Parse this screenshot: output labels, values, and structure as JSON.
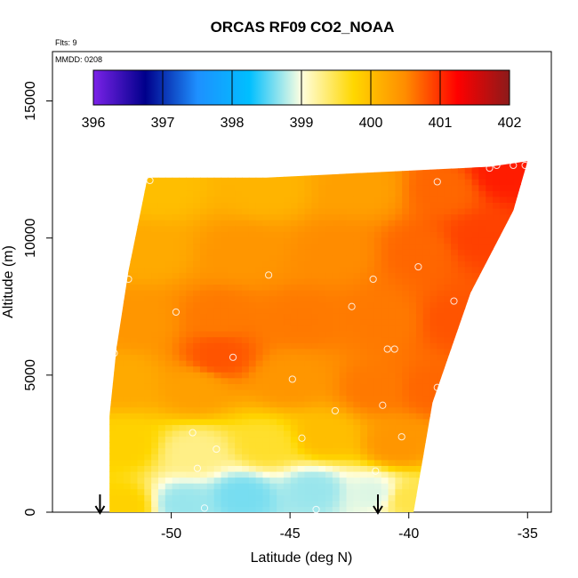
{
  "chart_data": {
    "type": "heatmap",
    "title": "ORCAS RF09 CO2_NOAA",
    "top_note": "Flts: 9",
    "inner_note": "MMDD: 0208",
    "xlabel": "Latitude (deg N)",
    "ylabel": "Altitude (m)",
    "xlim": [
      -55,
      -34
    ],
    "ylim": [
      0,
      16800
    ],
    "x_ticks": [
      -50,
      -45,
      -40,
      -35
    ],
    "x_tick_labels": [
      "-50",
      "-45",
      "-40",
      "-35"
    ],
    "y_ticks": [
      0,
      5000,
      10000,
      15000
    ],
    "y_tick_labels": [
      "0",
      "5000",
      "10000",
      "15000"
    ],
    "colorbar": {
      "min": 396,
      "max": 402,
      "ticks": [
        396,
        397,
        398,
        399,
        400,
        401,
        402
      ],
      "tick_labels": [
        "396",
        "397",
        "398",
        "399",
        "400",
        "401",
        "402"
      ],
      "colors": [
        "#7B22E8",
        "#00008B",
        "#1E90FF",
        "#00BFFF",
        "#FFFFE0",
        "#FFD700",
        "#FF8C00",
        "#FF0000",
        "#8B1A1A"
      ]
    },
    "curtain_outline": [
      {
        "lat": -52.6,
        "alt": 0
      },
      {
        "lat": -52.6,
        "alt": 3500
      },
      {
        "lat": -52.3,
        "alt": 6000
      },
      {
        "lat": -51.8,
        "alt": 8800
      },
      {
        "lat": -51.0,
        "alt": 12200
      },
      {
        "lat": -46.0,
        "alt": 12200
      },
      {
        "lat": -36.6,
        "alt": 12600
      },
      {
        "lat": -35.0,
        "alt": 12800
      },
      {
        "lat": -35.6,
        "alt": 11000
      },
      {
        "lat": -37.4,
        "alt": 8000
      },
      {
        "lat": -39.0,
        "alt": 4000
      },
      {
        "lat": -39.8,
        "alt": 0
      }
    ],
    "field_samples": [
      {
        "lat": -52.0,
        "alt": 200,
        "co2": 399.8
      },
      {
        "lat": -49.5,
        "alt": 300,
        "co2": 398.7
      },
      {
        "lat": -47.0,
        "alt": 600,
        "co2": 398.6
      },
      {
        "lat": -44.0,
        "alt": 800,
        "co2": 398.7
      },
      {
        "lat": -41.5,
        "alt": 700,
        "co2": 398.9
      },
      {
        "lat": -40.0,
        "alt": 500,
        "co2": 399.5
      },
      {
        "lat": -52.0,
        "alt": 2500,
        "co2": 399.8
      },
      {
        "lat": -49.0,
        "alt": 2200,
        "co2": 399.3
      },
      {
        "lat": -46.0,
        "alt": 2500,
        "co2": 399.6
      },
      {
        "lat": -43.5,
        "alt": 2800,
        "co2": 400.0
      },
      {
        "lat": -40.5,
        "alt": 2500,
        "co2": 400.4
      },
      {
        "lat": -52.0,
        "alt": 4800,
        "co2": 400.2
      },
      {
        "lat": -49.0,
        "alt": 4500,
        "co2": 400.3
      },
      {
        "lat": -45.0,
        "alt": 4800,
        "co2": 400.4
      },
      {
        "lat": -41.5,
        "alt": 4500,
        "co2": 400.6
      },
      {
        "lat": -39.0,
        "alt": 4500,
        "co2": 400.7
      },
      {
        "lat": -51.5,
        "alt": 7000,
        "co2": 400.4
      },
      {
        "lat": -48.0,
        "alt": 7200,
        "co2": 400.6
      },
      {
        "lat": -44.5,
        "alt": 7000,
        "co2": 400.6
      },
      {
        "lat": -41.0,
        "alt": 7000,
        "co2": 400.6
      },
      {
        "lat": -38.0,
        "alt": 7000,
        "co2": 400.8
      },
      {
        "lat": -51.0,
        "alt": 9500,
        "co2": 400.2
      },
      {
        "lat": -47.0,
        "alt": 9500,
        "co2": 400.4
      },
      {
        "lat": -43.0,
        "alt": 9500,
        "co2": 400.5
      },
      {
        "lat": -39.5,
        "alt": 9500,
        "co2": 400.7
      },
      {
        "lat": -37.0,
        "alt": 10000,
        "co2": 400.9
      },
      {
        "lat": -50.5,
        "alt": 11800,
        "co2": 400.0
      },
      {
        "lat": -46.0,
        "alt": 11800,
        "co2": 400.1
      },
      {
        "lat": -42.0,
        "alt": 11800,
        "co2": 400.3
      },
      {
        "lat": -38.5,
        "alt": 11800,
        "co2": 400.7
      },
      {
        "lat": -36.0,
        "alt": 12400,
        "co2": 401.1
      },
      {
        "lat": -48.0,
        "alt": 5700,
        "co2": 400.8
      }
    ],
    "sample_points": [
      {
        "lat": -50.9,
        "alt": 12100
      },
      {
        "lat": -38.8,
        "alt": 12050
      },
      {
        "lat": -36.6,
        "alt": 12550
      },
      {
        "lat": -36.3,
        "alt": 12650
      },
      {
        "lat": -35.6,
        "alt": 12650
      },
      {
        "lat": -35.1,
        "alt": 12650
      },
      {
        "lat": -39.6,
        "alt": 8950
      },
      {
        "lat": -45.9,
        "alt": 8650
      },
      {
        "lat": -41.5,
        "alt": 8500
      },
      {
        "lat": -51.8,
        "alt": 8500
      },
      {
        "lat": -38.1,
        "alt": 7700
      },
      {
        "lat": -42.4,
        "alt": 7500
      },
      {
        "lat": -49.8,
        "alt": 7300
      },
      {
        "lat": -40.9,
        "alt": 5950
      },
      {
        "lat": -40.6,
        "alt": 5950
      },
      {
        "lat": -52.4,
        "alt": 5800
      },
      {
        "lat": -47.4,
        "alt": 5650
      },
      {
        "lat": -44.9,
        "alt": 4850
      },
      {
        "lat": -38.8,
        "alt": 4550
      },
      {
        "lat": -41.1,
        "alt": 3900
      },
      {
        "lat": -43.1,
        "alt": 3700
      },
      {
        "lat": -49.1,
        "alt": 2900
      },
      {
        "lat": -40.3,
        "alt": 2750
      },
      {
        "lat": -44.5,
        "alt": 2700
      },
      {
        "lat": -48.1,
        "alt": 2300
      },
      {
        "lat": -48.9,
        "alt": 1600
      },
      {
        "lat": -41.4,
        "alt": 1500
      },
      {
        "lat": -48.6,
        "alt": 150
      },
      {
        "lat": -43.9,
        "alt": 100
      }
    ],
    "arrows_lat": [
      -53.0,
      -41.3
    ]
  }
}
